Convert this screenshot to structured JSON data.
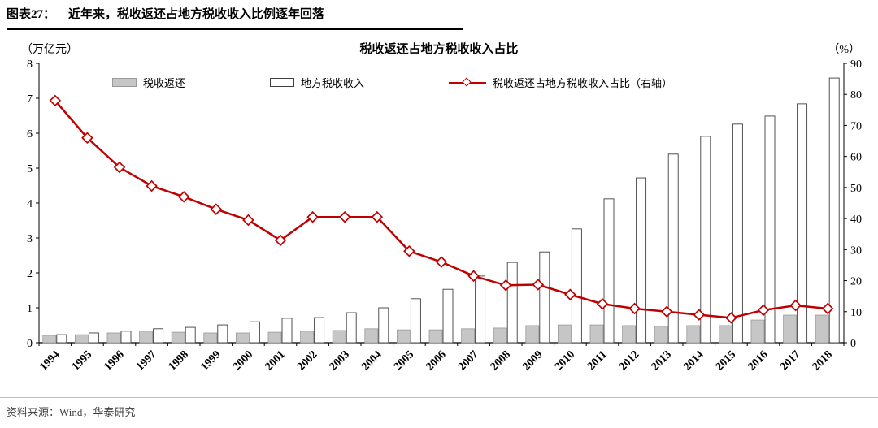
{
  "header": {
    "figure_label": "图表27：",
    "title": "近年来，税收返还占地方税收收入比例逐年回落"
  },
  "footer": {
    "source": "资料来源：Wind，华泰研究"
  },
  "chart_data": {
    "type": "bar",
    "title": "税收返还占地方税收收入占比",
    "left_axis_title": "（万亿元）",
    "right_axis_title": "（%）",
    "left_ylim": [
      0,
      8
    ],
    "left_tick_step": 1,
    "right_ylim": [
      0,
      90
    ],
    "right_tick_step": 10,
    "grid": false,
    "legend_position": "top-inside",
    "categories": [
      "1994",
      "1995",
      "1996",
      "1997",
      "1998",
      "1999",
      "2000",
      "2001",
      "2002",
      "2003",
      "2004",
      "2005",
      "2006",
      "2007",
      "2008",
      "2009",
      "2010",
      "2011",
      "2012",
      "2013",
      "2014",
      "2015",
      "2016",
      "2017",
      "2018"
    ],
    "series": [
      {
        "name": "税收返还",
        "type": "bar",
        "axis": "left",
        "fill": "#c6c6c6",
        "stroke": "#9a9a9a",
        "values": [
          0.21,
          0.23,
          0.28,
          0.33,
          0.3,
          0.28,
          0.28,
          0.3,
          0.33,
          0.35,
          0.4,
          0.37,
          0.37,
          0.4,
          0.42,
          0.49,
          0.51,
          0.51,
          0.49,
          0.47,
          0.49,
          0.49,
          0.65,
          0.79,
          0.79
        ]
      },
      {
        "name": "地方税收收入",
        "type": "bar",
        "axis": "left",
        "fill": "#ffffff",
        "stroke": "#3f3f3f",
        "values": [
          0.23,
          0.28,
          0.33,
          0.4,
          0.44,
          0.51,
          0.6,
          0.7,
          0.72,
          0.86,
          1.0,
          1.26,
          1.53,
          1.91,
          2.3,
          2.6,
          3.26,
          4.12,
          4.72,
          5.4,
          5.91,
          6.26,
          6.49,
          6.84,
          7.58
        ]
      },
      {
        "name": "税收返还占地方税收收入占比（右轴）",
        "type": "line",
        "axis": "right",
        "color": "#c00000",
        "marker": "open-diamond",
        "values": [
          78,
          66,
          56.5,
          50.5,
          47,
          43,
          39.5,
          33,
          40.5,
          40.5,
          40.5,
          29.5,
          26,
          21.5,
          18.5,
          18.7,
          15.5,
          12.5,
          11,
          10,
          9,
          8,
          10.5,
          12,
          11
        ]
      }
    ]
  }
}
